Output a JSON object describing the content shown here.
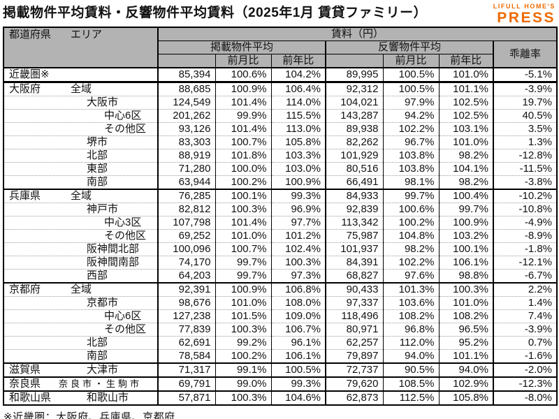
{
  "title": "掲載物件平均賃料・反響物件平均賃料（2025年1月 賃貸ファミリー）",
  "logo": {
    "top": "LIFULL HOME'S",
    "main": "PRESS",
    "color": "#ED6A00"
  },
  "colors": {
    "header_bg": "#b3b3b3",
    "border": "#000000",
    "row_divider": "#9b9b9b",
    "logo_orange": "#ED6A00"
  },
  "footnote": "※近畿圏：大阪府、兵庫県、京都府",
  "table": {
    "header": {
      "prefecture": "都道府県",
      "area": "エリア",
      "rent_group": "賃料（円）",
      "listed_group": "掲載物件平均",
      "response_group": "反響物件平均",
      "mom": "前月比",
      "yoy": "前年比",
      "divergence": "乖離率"
    },
    "sections": [
      {
        "divider": "strong-after",
        "rows": [
          {
            "pref": "近畿圏※",
            "area": "",
            "indent": 1,
            "v1": "85,394",
            "m1": "100.6%",
            "y1": "104.2%",
            "v2": "89,995",
            "m2": "100.5%",
            "y2": "101.0%",
            "div": "-5.1%"
          }
        ]
      },
      {
        "divider": "strong",
        "rows": [
          {
            "pref": "大阪府",
            "area": "全域",
            "indent": 1,
            "v1": "88,685",
            "m1": "100.9%",
            "y1": "106.4%",
            "v2": "92,312",
            "m2": "100.5%",
            "y2": "101.1%",
            "div": "-3.9%"
          },
          {
            "pref": "",
            "area": "大阪市",
            "indent": 2,
            "v1": "124,549",
            "m1": "101.4%",
            "y1": "114.0%",
            "v2": "104,021",
            "m2": "97.9%",
            "y2": "102.5%",
            "div": "19.7%"
          },
          {
            "pref": "",
            "area": "中心6区",
            "indent": 3,
            "v1": "201,262",
            "m1": "99.9%",
            "y1": "115.5%",
            "v2": "143,287",
            "m2": "94.2%",
            "y2": "102.5%",
            "div": "40.5%"
          },
          {
            "pref": "",
            "area": "その他区",
            "indent": 3,
            "v1": "93,126",
            "m1": "101.4%",
            "y1": "113.0%",
            "v2": "89,938",
            "m2": "102.2%",
            "y2": "103.1%",
            "div": "3.5%"
          },
          {
            "pref": "",
            "area": "堺市",
            "indent": 2,
            "v1": "83,303",
            "m1": "100.7%",
            "y1": "105.8%",
            "v2": "82,262",
            "m2": "96.7%",
            "y2": "101.0%",
            "div": "1.3%"
          },
          {
            "pref": "",
            "area": "北部",
            "indent": 2,
            "v1": "88,919",
            "m1": "101.8%",
            "y1": "103.3%",
            "v2": "101,929",
            "m2": "103.8%",
            "y2": "98.2%",
            "div": "-12.8%"
          },
          {
            "pref": "",
            "area": "東部",
            "indent": 2,
            "v1": "71,280",
            "m1": "100.0%",
            "y1": "103.0%",
            "v2": "80,516",
            "m2": "103.8%",
            "y2": "104.1%",
            "div": "-11.5%"
          },
          {
            "pref": "",
            "area": "南部",
            "indent": 2,
            "v1": "63,944",
            "m1": "100.2%",
            "y1": "100.9%",
            "v2": "66,491",
            "m2": "98.1%",
            "y2": "98.2%",
            "div": "-3.8%"
          }
        ]
      },
      {
        "divider": "normal",
        "rows": [
          {
            "pref": "兵庫県",
            "area": "全域",
            "indent": 1,
            "v1": "76,285",
            "m1": "100.1%",
            "y1": "99.3%",
            "v2": "84,933",
            "m2": "99.7%",
            "y2": "100.4%",
            "div": "-10.2%"
          },
          {
            "pref": "",
            "area": "神戸市",
            "indent": 2,
            "v1": "82,812",
            "m1": "100.3%",
            "y1": "96.9%",
            "v2": "92,839",
            "m2": "100.6%",
            "y2": "99.7%",
            "div": "-10.8%"
          },
          {
            "pref": "",
            "area": "中心3区",
            "indent": 3,
            "v1": "107,798",
            "m1": "101.4%",
            "y1": "97.7%",
            "v2": "113,342",
            "m2": "100.2%",
            "y2": "100.9%",
            "div": "-4.9%"
          },
          {
            "pref": "",
            "area": "その他区",
            "indent": 3,
            "v1": "69,252",
            "m1": "101.0%",
            "y1": "101.2%",
            "v2": "75,987",
            "m2": "104.8%",
            "y2": "103.2%",
            "div": "-8.9%"
          },
          {
            "pref": "",
            "area": "阪神間北部",
            "indent": 2,
            "v1": "100,096",
            "m1": "100.7%",
            "y1": "102.4%",
            "v2": "101,937",
            "m2": "98.2%",
            "y2": "100.1%",
            "div": "-1.8%"
          },
          {
            "pref": "",
            "area": "阪神間南部",
            "indent": 2,
            "v1": "74,170",
            "m1": "99.7%",
            "y1": "100.3%",
            "v2": "84,391",
            "m2": "102.2%",
            "y2": "106.1%",
            "div": "-12.1%"
          },
          {
            "pref": "",
            "area": "西部",
            "indent": 2,
            "v1": "64,203",
            "m1": "99.7%",
            "y1": "97.3%",
            "v2": "68,827",
            "m2": "97.6%",
            "y2": "98.8%",
            "div": "-6.7%"
          }
        ]
      },
      {
        "divider": "normal",
        "rows": [
          {
            "pref": "京都府",
            "area": "全域",
            "indent": 1,
            "v1": "92,391",
            "m1": "100.9%",
            "y1": "106.8%",
            "v2": "90,433",
            "m2": "101.3%",
            "y2": "100.3%",
            "div": "2.2%"
          },
          {
            "pref": "",
            "area": "京都市",
            "indent": 2,
            "v1": "98,676",
            "m1": "101.0%",
            "y1": "108.0%",
            "v2": "97,337",
            "m2": "103.6%",
            "y2": "101.0%",
            "div": "1.4%"
          },
          {
            "pref": "",
            "area": "中心6区",
            "indent": 3,
            "v1": "127,238",
            "m1": "101.5%",
            "y1": "109.0%",
            "v2": "118,496",
            "m2": "108.2%",
            "y2": "108.2%",
            "div": "7.4%"
          },
          {
            "pref": "",
            "area": "その他区",
            "indent": 3,
            "v1": "77,839",
            "m1": "100.3%",
            "y1": "106.7%",
            "v2": "80,971",
            "m2": "96.8%",
            "y2": "96.5%",
            "div": "-3.9%"
          },
          {
            "pref": "",
            "area": "北部",
            "indent": 2,
            "v1": "62,691",
            "m1": "99.2%",
            "y1": "96.1%",
            "v2": "62,257",
            "m2": "112.0%",
            "y2": "95.2%",
            "div": "0.7%"
          },
          {
            "pref": "",
            "area": "南部",
            "indent": 2,
            "v1": "78,584",
            "m1": "100.2%",
            "y1": "106.1%",
            "v2": "79,897",
            "m2": "94.0%",
            "y2": "101.1%",
            "div": "-1.6%"
          }
        ]
      },
      {
        "divider": "normal",
        "rows": [
          {
            "pref": "滋賀県",
            "area": "大津市",
            "indent": 2,
            "v1": "71,317",
            "m1": "99.1%",
            "y1": "100.5%",
            "v2": "72,737",
            "m2": "90.5%",
            "y2": "94.0%",
            "div": "-2.0%"
          }
        ]
      },
      {
        "divider": "normal",
        "rows": [
          {
            "pref": "奈良県",
            "area": "奈良市・生駒市",
            "indent": 2,
            "small": true,
            "v1": "69,791",
            "m1": "99.0%",
            "y1": "99.3%",
            "v2": "79,620",
            "m2": "108.5%",
            "y2": "102.9%",
            "div": "-12.3%"
          }
        ]
      },
      {
        "divider": "normal",
        "rows": [
          {
            "pref": "和歌山県",
            "area": "和歌山市",
            "indent": 2,
            "v1": "57,871",
            "m1": "100.3%",
            "y1": "104.6%",
            "v2": "62,873",
            "m2": "112.5%",
            "y2": "105.8%",
            "div": "-8.0%"
          }
        ]
      }
    ]
  }
}
